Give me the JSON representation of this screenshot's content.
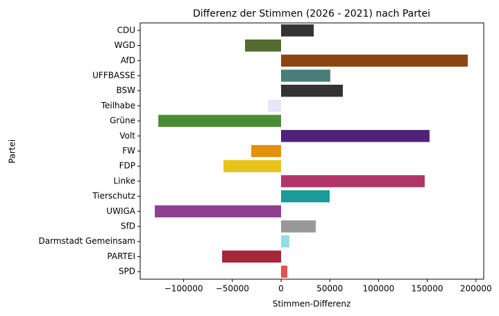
{
  "chart_data": {
    "type": "barh",
    "title": "Differenz der Stimmen (2026 - 2021) nach Partei",
    "x_label": "Stimmen-Differenz",
    "y_label": "Partei",
    "categories": [
      "CDU",
      "WGD",
      "AfD",
      "UFFBASSE",
      "BSW",
      "Teilhabe",
      "Grüne",
      "Volt",
      "FW",
      "FDP",
      "Linke",
      "Tierschutz",
      "UWIGA",
      "SfD",
      "Darmstadt Gemeinsam",
      "PARTEI",
      "SPD"
    ],
    "values": [
      33500,
      -37000,
      191600,
      50500,
      63400,
      -13500,
      -126000,
      152400,
      -30600,
      -59100,
      147400,
      49900,
      -129600,
      35600,
      8500,
      -60500,
      6400
    ],
    "colors": [
      "#333333",
      "#556b2f",
      "#8b4513",
      "#4a7c7a",
      "#333333",
      "#e6e6fa",
      "#4a8c34",
      "#502379",
      "#e39010",
      "#e8c41a",
      "#b03468",
      "#1a9a98",
      "#8e3f92",
      "#999999",
      "#90dfe6",
      "#a6263a",
      "#e3504f"
    ],
    "xlim": [
      -144600,
      208000
    ],
    "xticks": [
      {
        "value": -100000,
        "label": "−100000"
      },
      {
        "value": -50000,
        "label": "−50000"
      },
      0,
      50000,
      100000,
      150000,
      200000
    ],
    "grid": false
  }
}
